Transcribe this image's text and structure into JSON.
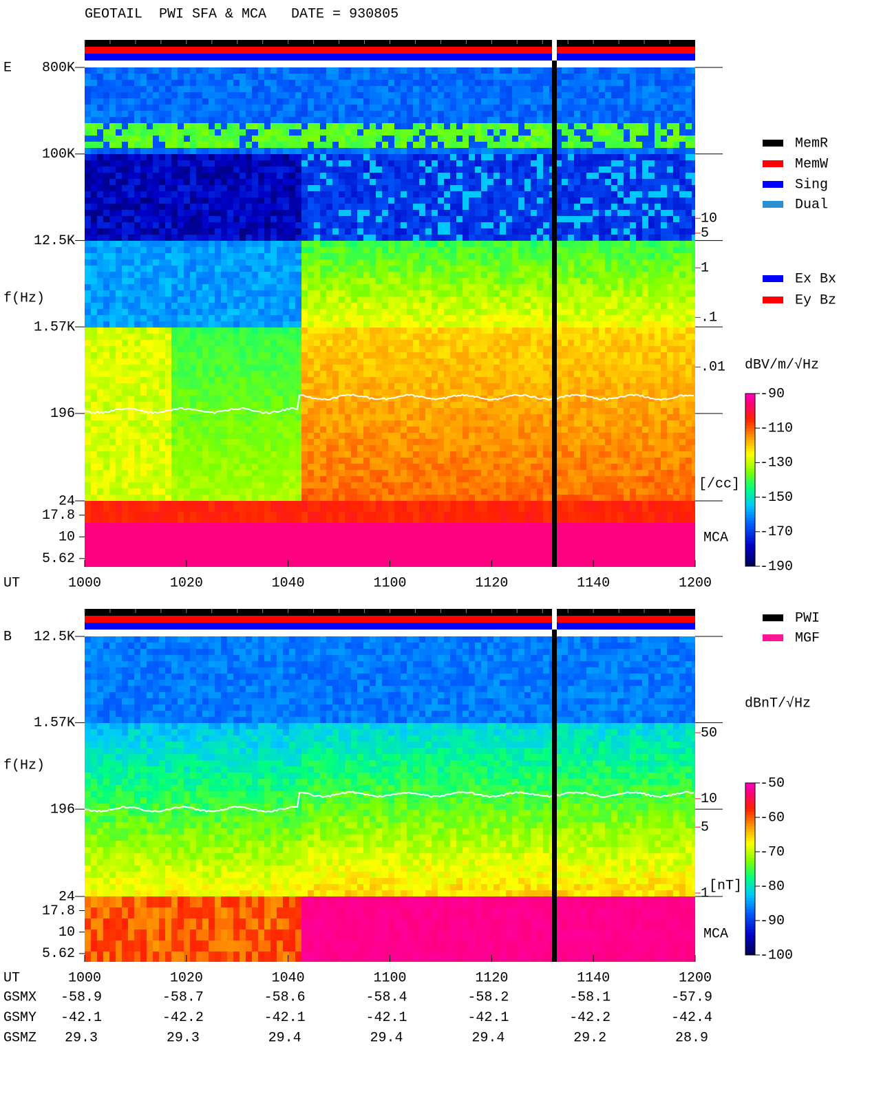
{
  "title": "GEOTAIL  PWI SFA & MCA   DATE = 930805",
  "chart_data": [
    {
      "type": "spectrogram",
      "label": "E",
      "ylabel": "f(Hz)",
      "xlabel": "UT",
      "log_y": true,
      "xlim": [
        600,
        720
      ],
      "xticks": [
        {
          "value": 600,
          "label": "1000"
        },
        {
          "value": 620,
          "label": "1020"
        },
        {
          "value": 640,
          "label": "1040"
        },
        {
          "value": 660,
          "label": "1100"
        },
        {
          "value": 680,
          "label": "1120"
        },
        {
          "value": 700,
          "label": "1140"
        },
        {
          "value": 720,
          "label": "1200"
        }
      ],
      "ylim": [
        24,
        800000
      ],
      "yticks": [
        {
          "value": 800000,
          "label": "800K"
        },
        {
          "value": 100000,
          "label": "100K"
        },
        {
          "value": 12500,
          "label": "12.5K"
        },
        {
          "value": 1570,
          "label": "1.57K"
        },
        196,
        24
      ],
      "mca_label": "MCA",
      "mca_ylim": [
        4.5,
        26
      ],
      "mca_yticks": [
        17.8,
        10,
        5.62
      ],
      "density_unit": "[/cc]",
      "density_ylim": [
        2e-05,
        11000
      ],
      "density_ticks": [
        10,
        5,
        1,
        {
          "value": 0.1,
          "label": ".1"
        },
        {
          "value": 0.01,
          "label": ".01"
        }
      ],
      "colorbar": {
        "label": "dBV/m/√Hz",
        "clim": [
          -190,
          -90
        ],
        "ticks": [
          -90,
          -110,
          -130,
          -150,
          -170,
          -190
        ]
      },
      "legend": [
        {
          "name": "MemR",
          "color": "#000000"
        },
        {
          "name": "MemW",
          "color": "#ff0000"
        },
        {
          "name": "Sing",
          "color": "#0000ff"
        },
        {
          "name": "Dual",
          "color": "#2a8fd0"
        }
      ],
      "legend2": [
        {
          "name": "Ex Bx",
          "color": "#0000ff"
        },
        {
          "name": "Ey Bz",
          "color": "#ff0000"
        }
      ]
    },
    {
      "type": "spectrogram",
      "label": "B",
      "ylabel": "f(Hz)",
      "xlabel": "UT",
      "log_y": true,
      "xlim": [
        600,
        720
      ],
      "xticks": [
        {
          "value": 600,
          "label": "1000"
        },
        {
          "value": 620,
          "label": "1020"
        },
        {
          "value": 640,
          "label": "1040"
        },
        {
          "value": 660,
          "label": "1100"
        },
        {
          "value": 680,
          "label": "1120"
        },
        {
          "value": 700,
          "label": "1140"
        },
        {
          "value": 720,
          "label": "1200"
        }
      ],
      "ylim": [
        24,
        12500
      ],
      "yticks": [
        {
          "value": 12500,
          "label": "12.5K"
        },
        {
          "value": 1570,
          "label": "1.57K"
        },
        196,
        24
      ],
      "mca_label": "MCA",
      "mca_ylim": [
        4.5,
        26
      ],
      "mca_yticks": [
        17.8,
        10,
        5.62
      ],
      "density_unit": "[nT]",
      "density_ylim": [
        0.92,
        525
      ],
      "density_ticks": [
        50,
        10,
        5,
        1
      ],
      "colorbar": {
        "label": "dBnT/√Hz",
        "clim": [
          -100,
          -50
        ],
        "ticks": [
          -50,
          -60,
          -70,
          -80,
          -90,
          -100
        ]
      },
      "legend": [
        {
          "name": "PWI",
          "color": "#000000"
        },
        {
          "name": "MGF",
          "color": "#ff1493"
        }
      ],
      "orbit": [
        {
          "label": "GSMX",
          "values": [
            -58.9,
            -58.7,
            -58.6,
            -58.4,
            -58.2,
            -58.1,
            -57.9
          ]
        },
        {
          "label": "GSMY",
          "values": [
            -42.1,
            -42.2,
            -42.1,
            -42.1,
            -42.1,
            -42.2,
            -42.4
          ]
        },
        {
          "label": "GSMZ",
          "values": [
            29.3,
            29.3,
            29.4,
            29.4,
            29.4,
            29.2,
            28.9
          ]
        }
      ]
    }
  ]
}
